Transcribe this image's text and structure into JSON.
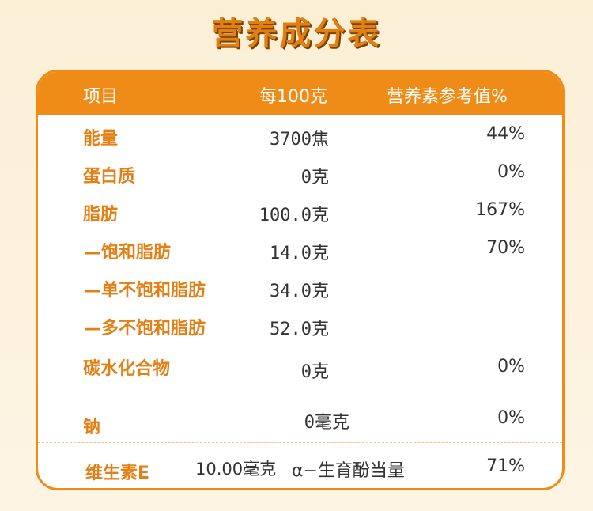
{
  "title": "营养成分表",
  "header": {
    "item": "项目",
    "per100": "每100克",
    "nrv": "营养素参考值%"
  },
  "rows": [
    {
      "name": "能量",
      "per100": "3700焦",
      "nrv": "44%"
    },
    {
      "name": "蛋白质",
      "per100": "0克",
      "nrv": "0%"
    },
    {
      "name": "脂肪",
      "per100": "100.0克",
      "nrv": "167%"
    },
    {
      "name": "—饱和脂肪",
      "per100": "14.0克",
      "nrv": "70%"
    },
    {
      "name": "—单不饱和脂肪",
      "per100": "34.0克",
      "nrv": ""
    },
    {
      "name": "—多不饱和脂肪",
      "per100": "52.0克",
      "nrv": ""
    },
    {
      "name": "碳水化合物",
      "per100": "0克",
      "nrv": "0%"
    },
    {
      "name": "钠",
      "per100": "0毫克",
      "nrv": "0%"
    },
    {
      "name": "维生素E",
      "per100": "10.00毫克",
      "note": "α−生育酚当量",
      "nrv": "71%"
    }
  ]
}
